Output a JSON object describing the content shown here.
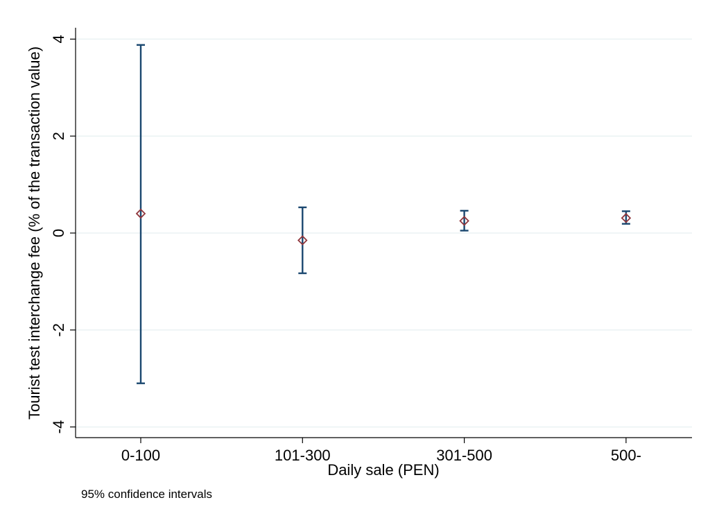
{
  "chart_data": {
    "type": "scatter",
    "subtype": "point-estimate-with-confidence-intervals",
    "categories": [
      "0-100",
      "101-300",
      "301-500",
      "500-"
    ],
    "series": [
      {
        "estimate": [
          0.4,
          -0.15,
          0.25,
          0.31
        ],
        "ci_low": [
          -3.1,
          -0.83,
          0.05,
          0.19
        ],
        "ci_high": [
          3.88,
          0.53,
          0.46,
          0.45
        ]
      }
    ],
    "xlabel": "Daily sale (PEN)",
    "ylabel": "Tourist test interchange fee (% of the transaction value)",
    "ylim": [
      -4.2,
      4.2
    ],
    "yticks": [
      -4,
      -2,
      0,
      2,
      4
    ],
    "ytick_labels": [
      "-4",
      "-2",
      "0",
      "2",
      "4"
    ],
    "grid": "horizontal",
    "note": "95% confidence intervals",
    "colors": {
      "ci": "#1a476f",
      "marker": "#90353b",
      "grid": "#eaf2f3",
      "background": "#ffffff"
    }
  }
}
